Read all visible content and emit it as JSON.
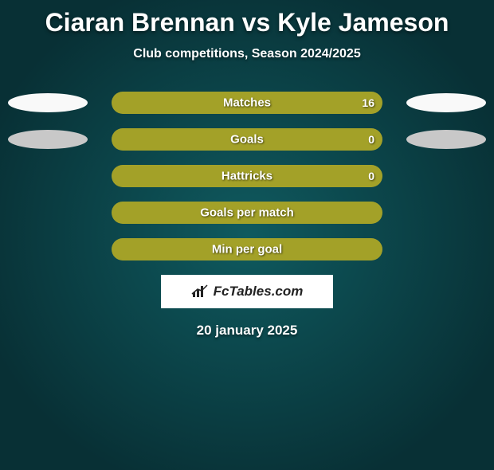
{
  "title": "Ciaran Brennan vs Kyle Jameson",
  "subtitle": "Club competitions, Season 2024/2025",
  "date": "20 january 2025",
  "logo_text": "FcTables.com",
  "colors": {
    "olive": "#a3a128",
    "white_ellipse": "#f9f9f9",
    "grey_ellipse": "#c8c8c8"
  },
  "rows": [
    {
      "label": "Matches",
      "value": "16",
      "fill_color": "#a3a128",
      "fill_percent": 100,
      "ellipse_left": "#f9f9f9",
      "ellipse_right": "#f9f9f9",
      "show_value": true
    },
    {
      "label": "Goals",
      "value": "0",
      "fill_color": "#a3a128",
      "fill_percent": 100,
      "ellipse_left": "#c8c8c8",
      "ellipse_right": "#c8c8c8",
      "show_value": true
    },
    {
      "label": "Hattricks",
      "value": "0",
      "fill_color": "#a3a128",
      "fill_percent": 100,
      "ellipse_left": null,
      "ellipse_right": null,
      "show_value": true
    },
    {
      "label": "Goals per match",
      "value": "",
      "fill_color": "#a3a128",
      "fill_percent": 100,
      "ellipse_left": null,
      "ellipse_right": null,
      "show_value": false
    },
    {
      "label": "Min per goal",
      "value": "",
      "fill_color": "#a3a128",
      "fill_percent": 100,
      "ellipse_left": null,
      "ellipse_right": null,
      "show_value": false
    }
  ]
}
